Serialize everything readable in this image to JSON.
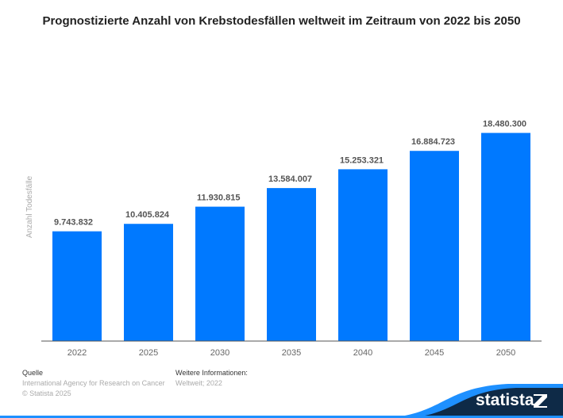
{
  "chart_data": {
    "type": "bar",
    "title": "Prognostizierte Anzahl von Krebstodesfällen weltweit im Zeitraum von 2022 bis 2050",
    "xlabel": "",
    "ylabel": "Anzahl Todesfälle",
    "categories": [
      "2022",
      "2025",
      "2030",
      "2035",
      "2040",
      "2045",
      "2050"
    ],
    "values": [
      9743832,
      10405824,
      11930815,
      13584007,
      15253321,
      16884723,
      18480300
    ],
    "value_labels": [
      "9.743.832",
      "10.405.824",
      "11.930.815",
      "13.584.007",
      "15.253.321",
      "16.884.723",
      "18.480.300"
    ],
    "ylim": [
      0,
      20000000
    ],
    "grid": false,
    "bar_color": "#0079FF"
  },
  "footer": {
    "source_heading": "Quelle",
    "source_text": "International Agency for Research on Cancer",
    "copyright": "© Statista 2025",
    "info_heading": "Weitere Informationen:",
    "info_text": "Weltweit; 2022"
  },
  "brand": {
    "logo_text": "statista",
    "dark_color": "#0E2A47",
    "accent_color": "#1E90FF"
  }
}
